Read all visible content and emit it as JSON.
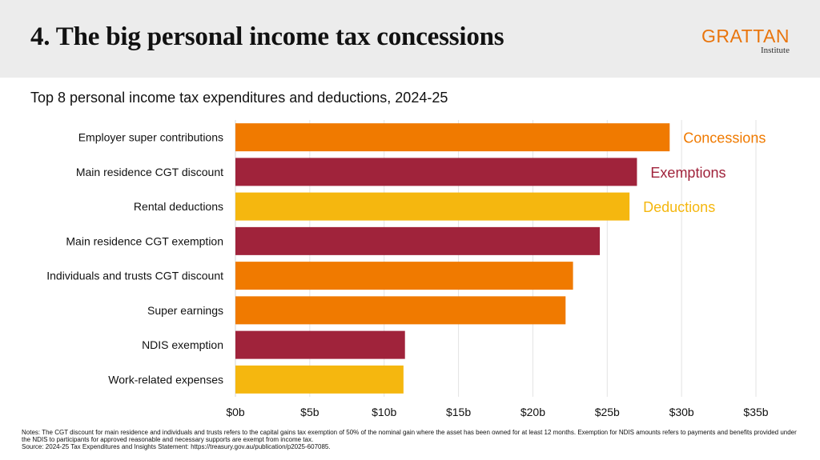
{
  "header": {
    "title": "4. The big personal income tax concessions",
    "logo": {
      "word": "GRATTAN",
      "sub": "Institute"
    }
  },
  "chart_data": {
    "type": "bar",
    "orientation": "horizontal",
    "title": "Top 8 personal income tax expenditures and deductions, 2024-25",
    "categories": [
      "Employer super contributions",
      "Main residence CGT discount",
      "Rental deductions",
      "Main residence CGT exemption",
      "Individuals and trusts CGT discount",
      "Super earnings",
      "NDIS exemption",
      "Work-related expenses"
    ],
    "values": [
      29.2,
      27.0,
      26.5,
      24.5,
      22.7,
      22.2,
      11.4,
      11.3
    ],
    "groups": [
      "Concessions",
      "Exemptions",
      "Deductions",
      "Exemptions",
      "Concessions",
      "Concessions",
      "Exemptions",
      "Deductions"
    ],
    "legend": [
      {
        "name": "Concessions",
        "color": "#f07a00",
        "anchor_index": 0
      },
      {
        "name": "Exemptions",
        "color": "#a0233b",
        "anchor_index": 1
      },
      {
        "name": "Deductions",
        "color": "#f5b70f",
        "anchor_index": 2
      }
    ],
    "xlim": [
      0,
      35
    ],
    "x_ticks": [
      0,
      5,
      10,
      15,
      20,
      25,
      30,
      35
    ],
    "x_tick_labels": [
      "$0b",
      "$5b",
      "$10b",
      "$15b",
      "$20b",
      "$25b",
      "$30b",
      "$35b"
    ],
    "grid": true
  },
  "notes": {
    "line1": "Notes: The CGT discount for main residence and individuals and trusts refers to the capital gains tax exemption of 50% of the nominal gain where the asset has been owned for at least 12 months. Exemption for NDIS amounts refers to payments and benefits provided under the NDIS to participants for approved reasonable and necessary supports are exempt from income tax.",
    "line2": "Source: 2024-25 Tax Expenditures and Insights Statement: https://treasury.gov.au/publication/p2025-607085."
  }
}
